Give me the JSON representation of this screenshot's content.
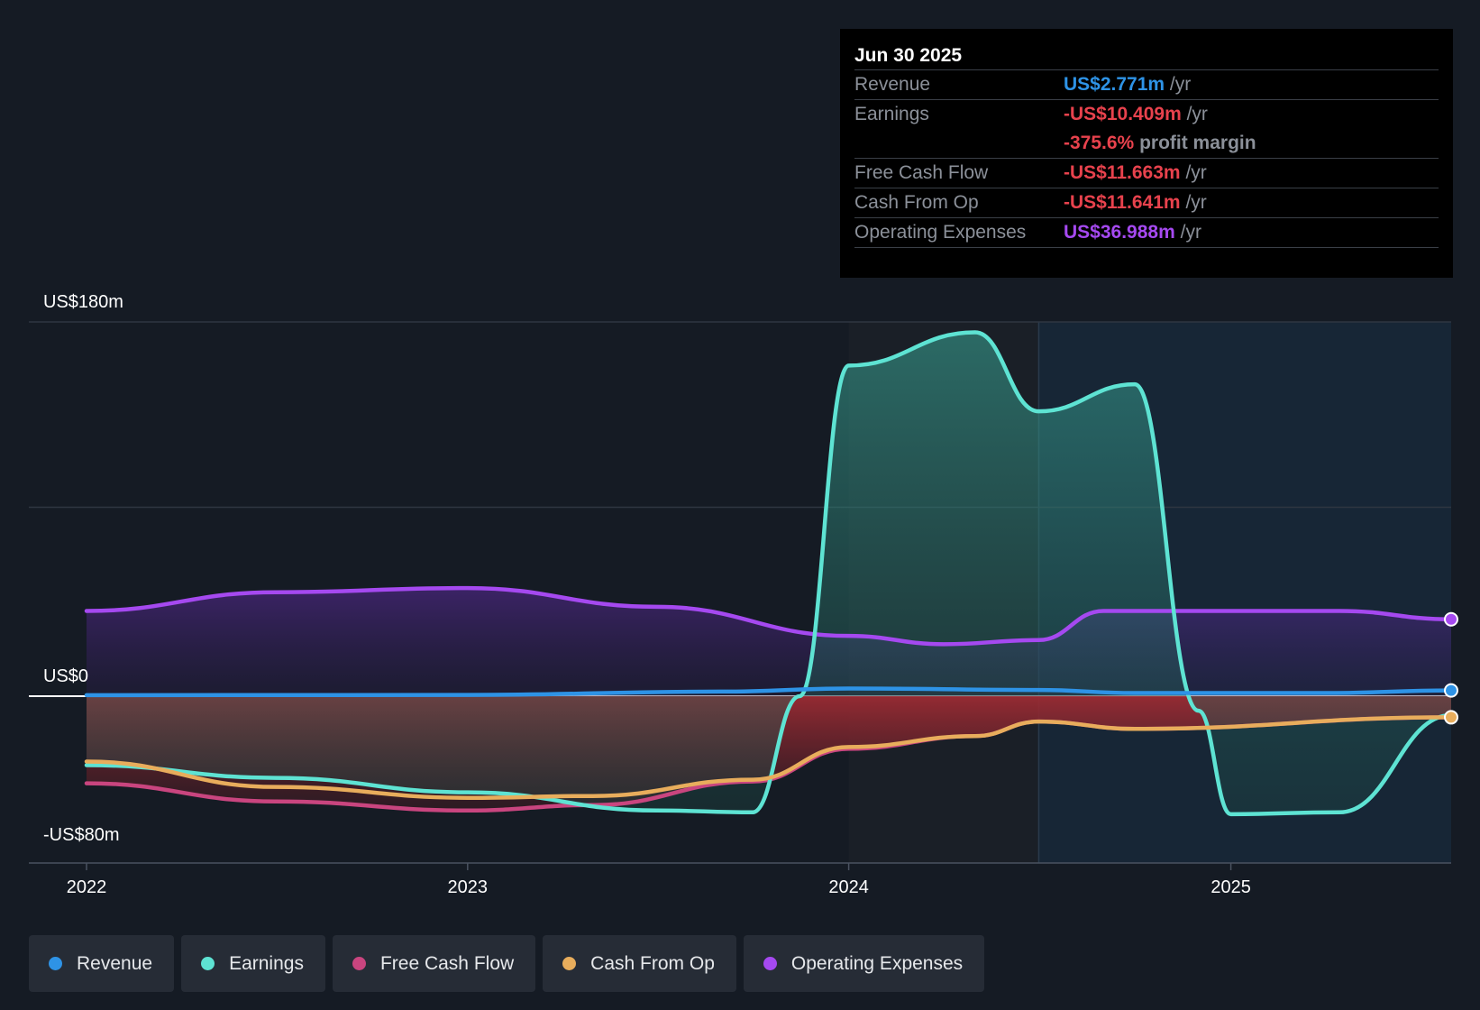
{
  "tooltip": {
    "date": "Jun 30 2025",
    "rows": [
      {
        "label": "Revenue",
        "value": "US$2.771m",
        "unit": "/yr",
        "color": "#2e93e6"
      },
      {
        "label": "Earnings",
        "value": "-US$10.409m",
        "unit": "/yr",
        "color": "#e8424d",
        "extra_value": "-375.6%",
        "extra_unit": "profit margin"
      },
      {
        "label": "Free Cash Flow",
        "value": "-US$11.663m",
        "unit": "/yr",
        "color": "#e8424d"
      },
      {
        "label": "Cash From Op",
        "value": "-US$11.641m",
        "unit": "/yr",
        "color": "#e8424d"
      },
      {
        "label": "Operating Expenses",
        "value": "US$36.988m",
        "unit": "/yr",
        "color": "#a549f0"
      }
    ]
  },
  "legend": [
    {
      "label": "Revenue",
      "color": "#2e93e6"
    },
    {
      "label": "Earnings",
      "color": "#5ee3d3"
    },
    {
      "label": "Free Cash Flow",
      "color": "#c9457f"
    },
    {
      "label": "Cash From Op",
      "color": "#e8ad5c"
    },
    {
      "label": "Operating Expenses",
      "color": "#a549f0"
    }
  ],
  "chart_data": {
    "type": "area",
    "x_ticks": [
      "2022",
      "2023",
      "2024",
      "2025"
    ],
    "y_labels": [
      "US$180m",
      "US$0",
      "-US$80m"
    ],
    "ylim": [
      -80,
      180
    ],
    "x_range": [
      "2022-01-01",
      "2025-07-31"
    ],
    "forecast_start": "2024-07-01",
    "grid": true,
    "legend_position": "bottom",
    "series": [
      {
        "name": "Revenue",
        "color": "#2e93e6",
        "points": [
          [
            "2022-01-01",
            0.5
          ],
          [
            "2023-01-01",
            0.6
          ],
          [
            "2023-09-01",
            2.2
          ],
          [
            "2024-01-01",
            3.7
          ],
          [
            "2024-07-01",
            3.0
          ],
          [
            "2024-10-01",
            1.5
          ],
          [
            "2025-04-01",
            1.5
          ],
          [
            "2025-07-31",
            2.771
          ]
        ]
      },
      {
        "name": "Earnings",
        "color": "#5ee3d3",
        "points": [
          [
            "2022-01-01",
            -38
          ],
          [
            "2022-07-01",
            -45
          ],
          [
            "2023-01-01",
            -53
          ],
          [
            "2023-07-01",
            -63
          ],
          [
            "2023-10-01",
            -64
          ],
          [
            "2023-11-15",
            0
          ],
          [
            "2024-01-01",
            159
          ],
          [
            "2024-05-01",
            175
          ],
          [
            "2024-07-01",
            137
          ],
          [
            "2024-10-01",
            150
          ],
          [
            "2024-12-01",
            -8
          ],
          [
            "2025-01-01",
            -65
          ],
          [
            "2025-04-15",
            -64
          ],
          [
            "2025-07-31",
            -10.409
          ]
        ]
      },
      {
        "name": "Free Cash Flow",
        "color": "#c9457f",
        "points": [
          [
            "2022-01-01",
            -48
          ],
          [
            "2022-07-01",
            -58
          ],
          [
            "2023-01-01",
            -63
          ],
          [
            "2023-05-01",
            -60
          ],
          [
            "2023-10-01",
            -47
          ],
          [
            "2024-01-01",
            -29
          ],
          [
            "2024-05-01",
            -22
          ],
          [
            "2024-07-01",
            -14
          ],
          [
            "2024-10-01",
            -18
          ],
          [
            "2025-07-31",
            -11.663
          ]
        ]
      },
      {
        "name": "Cash From Op",
        "color": "#e8ad5c",
        "points": [
          [
            "2022-01-01",
            -36
          ],
          [
            "2022-07-01",
            -50
          ],
          [
            "2023-01-01",
            -56
          ],
          [
            "2023-05-01",
            -55
          ],
          [
            "2023-10-01",
            -46
          ],
          [
            "2024-01-01",
            -28
          ],
          [
            "2024-05-01",
            -22
          ],
          [
            "2024-07-01",
            -14
          ],
          [
            "2024-10-01",
            -18
          ],
          [
            "2025-07-31",
            -11.641
          ]
        ]
      },
      {
        "name": "Operating Expenses",
        "color": "#a549f0",
        "points": [
          [
            "2022-01-01",
            41
          ],
          [
            "2022-07-01",
            50
          ],
          [
            "2023-01-01",
            52
          ],
          [
            "2023-07-01",
            43
          ],
          [
            "2024-01-01",
            29
          ],
          [
            "2024-04-01",
            25
          ],
          [
            "2024-07-01",
            27
          ],
          [
            "2024-09-01",
            41
          ],
          [
            "2025-04-15",
            41
          ],
          [
            "2025-07-31",
            36.988
          ]
        ]
      }
    ]
  }
}
